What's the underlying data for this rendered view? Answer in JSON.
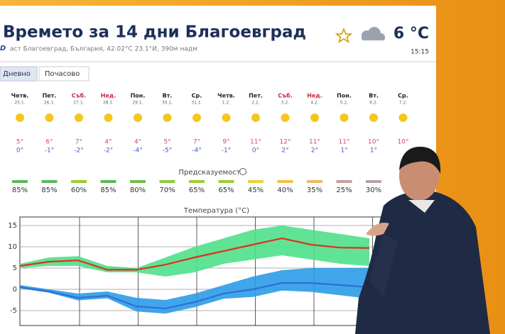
{
  "header": {
    "title": "Времето за 14 дни Благоевград",
    "temperature": "6 °C",
    "location": "аст Благоевград, България, 42.02°С 23.1°И, 390м надм",
    "time": "15:15"
  },
  "tabs": [
    "Дневно",
    "Почасово"
  ],
  "days": [
    {
      "name": "Четв.",
      "date": "25.1.",
      "max": "5°",
      "min": "0°",
      "weekend": false
    },
    {
      "name": "Пет.",
      "date": "26.1.",
      "max": "6°",
      "min": "-1°",
      "weekend": false
    },
    {
      "name": "Съб.",
      "date": "27.1.",
      "max": "7°",
      "min": "-2°",
      "weekend": true
    },
    {
      "name": "Нед.",
      "date": "28.1.",
      "max": "4°",
      "min": "-2°",
      "weekend": true
    },
    {
      "name": "Пон.",
      "date": "29.1.",
      "max": "4°",
      "min": "-4°",
      "weekend": false
    },
    {
      "name": "Вт.",
      "date": "30.1.",
      "max": "5°",
      "min": "-5°",
      "weekend": false
    },
    {
      "name": "Ср.",
      "date": "31.1.",
      "max": "7°",
      "min": "-4°",
      "weekend": false
    },
    {
      "name": "Четв.",
      "date": "1.2.",
      "max": "9°",
      "min": "-1°",
      "weekend": false
    },
    {
      "name": "Пет.",
      "date": "2.2.",
      "max": "11°",
      "min": "0°",
      "weekend": false
    },
    {
      "name": "Съб.",
      "date": "3.2.",
      "max": "12°",
      "min": "2°",
      "weekend": true
    },
    {
      "name": "Нед.",
      "date": "4.2.",
      "max": "11°",
      "min": "2°",
      "weekend": true
    },
    {
      "name": "Пон.",
      "date": "5.2.",
      "max": "11°",
      "min": "1°",
      "weekend": false
    },
    {
      "name": "Вт.",
      "date": "6.2.",
      "max": "10°",
      "min": "1°",
      "weekend": false
    },
    {
      "name": "Ср.",
      "date": "7.2.",
      "max": "10°",
      "min": null,
      "weekend": false
    }
  ],
  "predictability": {
    "label": "Предсказуемост",
    "items": [
      {
        "text": "85%",
        "color": "#5cb85c"
      },
      {
        "text": "85%",
        "color": "#5cb85c"
      },
      {
        "text": "60%",
        "color": "#9acd32"
      },
      {
        "text": "85%",
        "color": "#5cb85c"
      },
      {
        "text": "80%",
        "color": "#6cc04a"
      },
      {
        "text": "70%",
        "color": "#8ccc3a"
      },
      {
        "text": "65%",
        "color": "#9acd32"
      },
      {
        "text": "65%",
        "color": "#9acd32"
      },
      {
        "text": "45%",
        "color": "#e8d23a"
      },
      {
        "text": "40%",
        "color": "#f0c040"
      },
      {
        "text": "35%",
        "color": "#f0b860"
      },
      {
        "text": "25%",
        "color": "#c8a0a0"
      },
      {
        "text": "30%",
        "color": "#b8a0b0"
      }
    ]
  },
  "chart_data": {
    "type": "line",
    "title": "Температура (°С)",
    "categories": [
      null,
      null,
      null,
      null,
      null,
      null,
      null,
      null,
      null,
      null,
      null,
      null,
      null
    ],
    "ylim": [
      -8.5,
      17
    ],
    "yticks": [
      -5,
      0,
      5,
      10,
      15
    ],
    "grid": true,
    "series": [
      {
        "color": "#e0301e",
        "values": [
          5.5,
          6.5,
          6.8,
          4.6,
          4.6,
          5.8,
          7.5,
          9,
          10.5,
          12,
          10.5,
          9.8,
          9.7
        ]
      },
      {
        "color": "#2f6fd6",
        "values": [
          0.5,
          -0.5,
          -2,
          -1.5,
          -4,
          -4.5,
          -3,
          -1,
          0,
          1.5,
          1.5,
          1,
          0.5
        ]
      }
    ],
    "ranges": [
      {
        "color": "#4fe08a",
        "high": [
          6,
          7.5,
          7.8,
          5.5,
          5,
          7.5,
          10,
          12,
          14,
          15,
          14,
          13,
          12
        ],
        "low": [
          5,
          5.5,
          5.5,
          4,
          4,
          3,
          4,
          6,
          7,
          8,
          7,
          6,
          5.5
        ]
      },
      {
        "color": "#2c9be8",
        "high": [
          1,
          0,
          -1,
          -0.5,
          -2,
          -2.5,
          -1,
          1,
          3,
          4.5,
          5,
          5,
          5
        ]
      }
    ]
  }
}
